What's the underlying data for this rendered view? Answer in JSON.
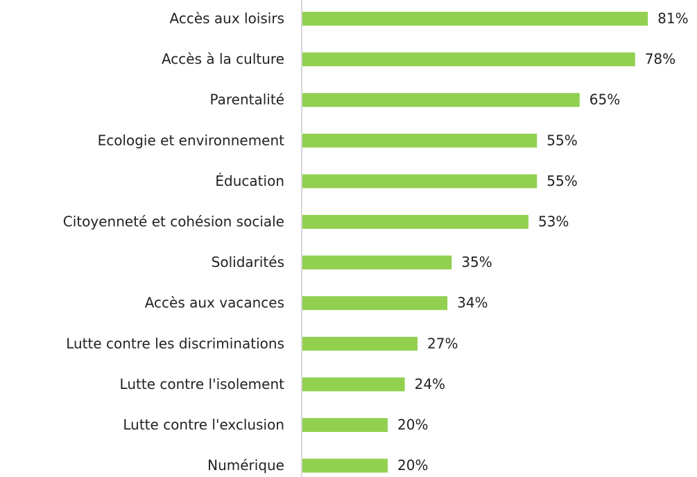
{
  "chart_data": {
    "type": "bar",
    "orientation": "horizontal",
    "categories": [
      "Accès aux loisirs",
      "Accès à la culture",
      "Parentalité",
      "Ecologie et environnement",
      "Éducation",
      "Citoyenneté et cohésion sociale",
      "Solidarités",
      "Accès aux vacances",
      "Lutte contre les discriminations",
      "Lutte contre l'isolement",
      "Lutte contre l'exclusion",
      "Numérique"
    ],
    "values": [
      81,
      78,
      65,
      55,
      55,
      53,
      35,
      34,
      27,
      24,
      20,
      20
    ],
    "value_labels": [
      "81%",
      "78%",
      "65%",
      "55%",
      "55%",
      "53%",
      "35%",
      "34%",
      "27%",
      "24%",
      "20%",
      "20%"
    ],
    "color": "#92d050",
    "xlim": [
      0,
      100
    ]
  }
}
